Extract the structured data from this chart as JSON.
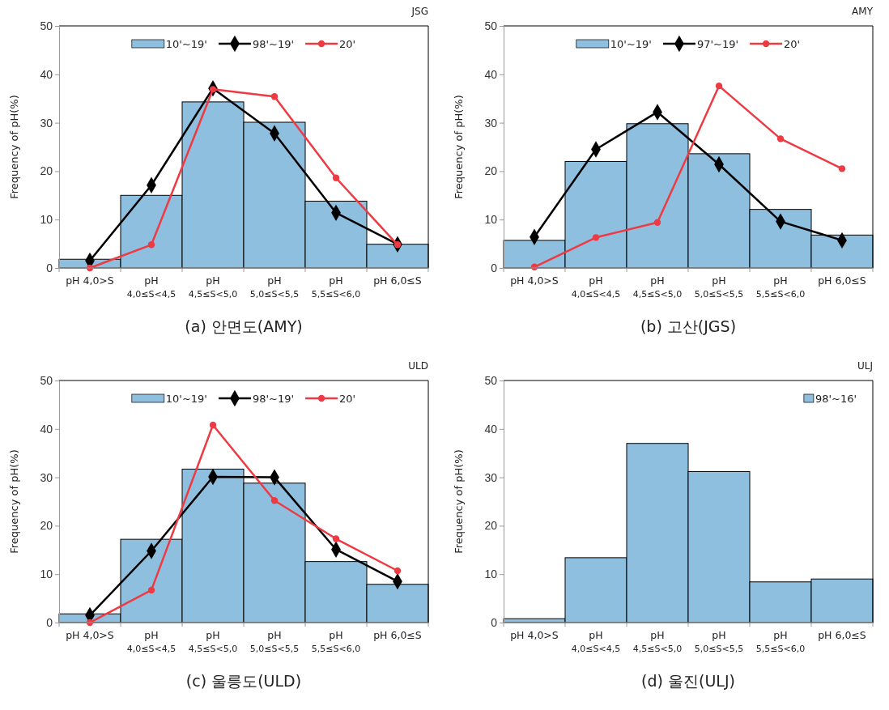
{
  "chart_data": [
    {
      "type": "bar",
      "title": "(a) 안면도(AMY)",
      "annotations": [
        "JSG"
      ],
      "ylabel": "Frequency  of pH(%)",
      "categories": [
        "pH 4,0>S",
        "pH 4,0≤S<4,5",
        "pH 4,5≤S<5,0",
        "pH 5,0≤S<5,5",
        "pH 5,5≤S<6,0",
        "pH 6,0≤S"
      ],
      "ylim": [
        0,
        50
      ],
      "yticks": [
        0,
        10,
        20,
        30,
        40,
        50
      ],
      "legend": "top",
      "series": [
        {
          "name": "10'~19'",
          "color": "#8fbfdf",
          "values": [
            1.8,
            15,
            34.3,
            30.1,
            13.8,
            4.9
          ]
        },
        {
          "name": "98'~19'",
          "type": "line",
          "marker": "diamond",
          "color": "#000000",
          "values": [
            1.5,
            17.1,
            37.1,
            27.8,
            11.4,
            4.9
          ]
        },
        {
          "name": "20'",
          "type": "line",
          "marker": "circle",
          "color": "#ee3a43",
          "values": [
            0,
            4.8,
            36.9,
            35.4,
            18.6,
            4.8
          ]
        }
      ]
    },
    {
      "type": "bar",
      "title": "(b) 고산(JGS)",
      "annotations": [
        "AMY"
      ],
      "ylabel": "Frequency  of pH(%)",
      "categories": [
        "pH 4,0>S",
        "pH 4,0≤S<4,5",
        "pH 4,5≤S<5,0",
        "pH 5,0≤S<5,5",
        "pH 5,5≤S<6,0",
        "pH 6,0≤S"
      ],
      "ylim": [
        0,
        50
      ],
      "yticks": [
        0,
        10,
        20,
        30,
        40,
        50
      ],
      "legend": "top",
      "series": [
        {
          "name": "10'~19'",
          "color": "#8fbfdf",
          "values": [
            5.7,
            22,
            29.8,
            23.6,
            12.1,
            6.8
          ]
        },
        {
          "name": "97'~19'",
          "type": "line",
          "marker": "diamond",
          "color": "#000000",
          "values": [
            6.4,
            24.5,
            32.2,
            21.4,
            9.6,
            5.7
          ]
        },
        {
          "name": "20'",
          "type": "line",
          "marker": "circle",
          "color": "#ee3a43",
          "values": [
            0.2,
            6.3,
            9.4,
            37.6,
            26.7,
            20.5
          ]
        }
      ]
    },
    {
      "type": "bar",
      "title": "(c) 울릉도(ULD)",
      "annotations": [
        "ULD"
      ],
      "ylabel": "Frequency  of pH(%)",
      "categories": [
        "pH 4,0>S",
        "pH 4,0≤S<4,5",
        "pH 4,5≤S<5,0",
        "pH 5,0≤S<5,5",
        "pH 5,5≤S<6,0",
        "pH 6,0≤S"
      ],
      "ylim": [
        0,
        50
      ],
      "yticks": [
        0,
        10,
        20,
        30,
        40,
        50
      ],
      "legend": "top",
      "series": [
        {
          "name": "10'~19'",
          "color": "#8fbfdf",
          "values": [
            1.8,
            17.2,
            31.7,
            28.8,
            12.6,
            7.9
          ]
        },
        {
          "name": "98'~19'",
          "type": "line",
          "marker": "diamond",
          "color": "#000000",
          "values": [
            1.5,
            14.8,
            30.1,
            30.0,
            15.1,
            8.5
          ]
        },
        {
          "name": "20'",
          "type": "line",
          "marker": "circle",
          "color": "#ee3a43",
          "values": [
            0,
            6.7,
            40.8,
            25.2,
            17.3,
            10.7
          ]
        }
      ]
    },
    {
      "type": "bar",
      "title": "(d) 울진(ULJ)",
      "annotations": [
        "ULJ"
      ],
      "ylabel": "Frequency  of pH(%)",
      "categories": [
        "pH 4,0>S",
        "pH 4,0≤S<4,5",
        "pH 4,5≤S<5,0",
        "pH 5,0≤S<5,5",
        "pH 5,5≤S<6,0",
        "pH 6,0≤S"
      ],
      "ylim": [
        0,
        50
      ],
      "yticks": [
        0,
        10,
        20,
        30,
        40,
        50
      ],
      "legend": "top right",
      "series": [
        {
          "name": "98'~16'",
          "color": "#8fbfdf",
          "values": [
            0.8,
            13.4,
            37.0,
            31.2,
            8.4,
            9.0
          ]
        }
      ]
    }
  ]
}
